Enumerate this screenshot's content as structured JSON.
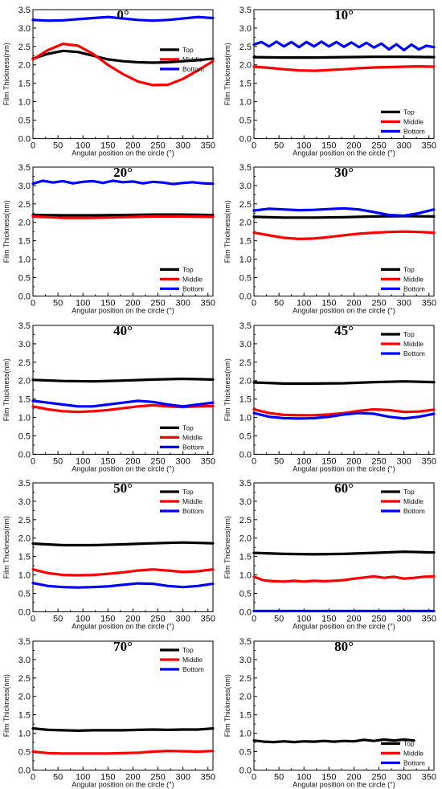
{
  "figure": {
    "xlabel": "Angular position on the circle (°)",
    "ylabel": "Film Thickness(nm)",
    "legend": [
      "Top",
      "Middle",
      "Bottom"
    ],
    "colors": {
      "Top": "#000000",
      "Middle": "#ff0000",
      "Bottom": "#0000ff"
    }
  },
  "chart_data": [
    {
      "type": "line",
      "title": "0°",
      "xlim": [
        0,
        360
      ],
      "ylim": [
        0,
        3.5
      ],
      "xticks": [
        0,
        50,
        100,
        150,
        200,
        250,
        300,
        350
      ],
      "yticks": [
        0.0,
        0.5,
        1.0,
        1.5,
        2.0,
        2.5,
        3.0,
        3.5
      ],
      "legend_position": "right-middle",
      "series": [
        {
          "name": "Top",
          "x": [
            0,
            30,
            60,
            90,
            120,
            150,
            180,
            210,
            240,
            270,
            300,
            330,
            360
          ],
          "y": [
            2.17,
            2.3,
            2.38,
            2.35,
            2.25,
            2.15,
            2.1,
            2.07,
            2.06,
            2.07,
            2.1,
            2.13,
            2.17
          ]
        },
        {
          "name": "Middle",
          "x": [
            0,
            30,
            60,
            90,
            120,
            150,
            180,
            210,
            240,
            270,
            300,
            330,
            360
          ],
          "y": [
            2.15,
            2.4,
            2.57,
            2.52,
            2.3,
            2.0,
            1.75,
            1.55,
            1.45,
            1.46,
            1.62,
            1.85,
            2.1
          ]
        },
        {
          "name": "Bottom",
          "x": [
            0,
            30,
            60,
            90,
            120,
            150,
            180,
            210,
            240,
            270,
            300,
            330,
            360
          ],
          "y": [
            3.22,
            3.2,
            3.21,
            3.24,
            3.27,
            3.3,
            3.26,
            3.22,
            3.2,
            3.22,
            3.26,
            3.3,
            3.27
          ]
        }
      ]
    },
    {
      "type": "line",
      "title": "10°",
      "xlim": [
        0,
        360
      ],
      "ylim": [
        0,
        3.5
      ],
      "xticks": [
        0,
        50,
        100,
        150,
        200,
        250,
        300,
        350
      ],
      "yticks": [
        0.0,
        0.5,
        1.0,
        1.5,
        2.0,
        2.5,
        3.0,
        3.5
      ],
      "legend_position": "bottom-right",
      "series": [
        {
          "name": "Top",
          "x": [
            0,
            60,
            120,
            180,
            240,
            300,
            360
          ],
          "y": [
            2.21,
            2.2,
            2.2,
            2.21,
            2.22,
            2.22,
            2.21
          ]
        },
        {
          "name": "Middle",
          "x": [
            0,
            30,
            60,
            90,
            120,
            150,
            180,
            210,
            240,
            270,
            300,
            330,
            360
          ],
          "y": [
            1.95,
            1.92,
            1.88,
            1.85,
            1.84,
            1.86,
            1.88,
            1.91,
            1.93,
            1.94,
            1.95,
            1.96,
            1.95
          ]
        },
        {
          "name": "Bottom",
          "x": [
            0,
            15,
            30,
            45,
            60,
            75,
            90,
            105,
            120,
            135,
            150,
            165,
            180,
            195,
            210,
            225,
            240,
            255,
            270,
            285,
            300,
            315,
            330,
            345,
            360
          ],
          "y": [
            2.55,
            2.62,
            2.5,
            2.63,
            2.5,
            2.62,
            2.48,
            2.62,
            2.5,
            2.63,
            2.5,
            2.62,
            2.49,
            2.61,
            2.48,
            2.6,
            2.47,
            2.58,
            2.42,
            2.56,
            2.4,
            2.55,
            2.42,
            2.52,
            2.48
          ]
        }
      ]
    },
    {
      "type": "line",
      "title": "20°",
      "xlim": [
        0,
        360
      ],
      "ylim": [
        0,
        3.5
      ],
      "xticks": [
        0,
        50,
        100,
        150,
        200,
        250,
        300,
        350
      ],
      "yticks": [
        0.0,
        0.5,
        1.0,
        1.5,
        2.0,
        2.5,
        3.0,
        3.5
      ],
      "legend_position": "bottom-right",
      "series": [
        {
          "name": "Top",
          "x": [
            0,
            60,
            120,
            180,
            240,
            300,
            360
          ],
          "y": [
            2.2,
            2.19,
            2.19,
            2.2,
            2.21,
            2.21,
            2.2
          ]
        },
        {
          "name": "Middle",
          "x": [
            0,
            60,
            120,
            180,
            240,
            300,
            360
          ],
          "y": [
            2.16,
            2.12,
            2.12,
            2.14,
            2.16,
            2.16,
            2.15
          ]
        },
        {
          "name": "Bottom",
          "x": [
            0,
            20,
            40,
            60,
            80,
            100,
            120,
            140,
            160,
            180,
            200,
            220,
            240,
            260,
            280,
            300,
            320,
            340,
            360
          ],
          "y": [
            3.05,
            3.13,
            3.08,
            3.12,
            3.06,
            3.1,
            3.12,
            3.07,
            3.13,
            3.09,
            3.11,
            3.06,
            3.1,
            3.08,
            3.04,
            3.07,
            3.09,
            3.06,
            3.05
          ]
        }
      ]
    },
    {
      "type": "line",
      "title": "30°",
      "xlim": [
        0,
        360
      ],
      "ylim": [
        0,
        3.5
      ],
      "xticks": [
        0,
        50,
        100,
        150,
        200,
        250,
        300,
        350
      ],
      "yticks": [
        0.0,
        0.5,
        1.0,
        1.5,
        2.0,
        2.5,
        3.0,
        3.5
      ],
      "legend_position": "bottom-right",
      "series": [
        {
          "name": "Top",
          "x": [
            0,
            60,
            120,
            180,
            240,
            300,
            360
          ],
          "y": [
            2.15,
            2.13,
            2.13,
            2.14,
            2.16,
            2.17,
            2.16
          ]
        },
        {
          "name": "Middle",
          "x": [
            0,
            30,
            60,
            90,
            120,
            150,
            180,
            210,
            240,
            270,
            300,
            330,
            360
          ],
          "y": [
            1.72,
            1.65,
            1.58,
            1.55,
            1.56,
            1.6,
            1.65,
            1.69,
            1.72,
            1.74,
            1.75,
            1.74,
            1.72
          ]
        },
        {
          "name": "Bottom",
          "x": [
            0,
            30,
            60,
            90,
            120,
            150,
            180,
            210,
            240,
            270,
            300,
            330,
            360
          ],
          "y": [
            2.32,
            2.37,
            2.35,
            2.33,
            2.34,
            2.36,
            2.38,
            2.35,
            2.28,
            2.2,
            2.18,
            2.25,
            2.35
          ]
        }
      ]
    },
    {
      "type": "line",
      "title": "40°",
      "xlim": [
        0,
        360
      ],
      "ylim": [
        0,
        3.5
      ],
      "xticks": [
        0,
        50,
        100,
        150,
        200,
        250,
        300,
        350
      ],
      "yticks": [
        0.0,
        0.5,
        1.0,
        1.5,
        2.0,
        2.5,
        3.0,
        3.5
      ],
      "legend_position": "bottom-right",
      "series": [
        {
          "name": "Top",
          "x": [
            0,
            60,
            120,
            180,
            240,
            300,
            360
          ],
          "y": [
            2.02,
            1.99,
            1.98,
            2.0,
            2.03,
            2.05,
            2.03
          ]
        },
        {
          "name": "Middle",
          "x": [
            0,
            30,
            60,
            90,
            120,
            150,
            180,
            210,
            240,
            270,
            300,
            330,
            360
          ],
          "y": [
            1.3,
            1.22,
            1.17,
            1.15,
            1.17,
            1.2,
            1.25,
            1.3,
            1.33,
            1.3,
            1.28,
            1.3,
            1.31
          ]
        },
        {
          "name": "Bottom",
          "x": [
            0,
            30,
            60,
            90,
            120,
            150,
            180,
            210,
            240,
            270,
            300,
            330,
            360
          ],
          "y": [
            1.45,
            1.4,
            1.35,
            1.3,
            1.3,
            1.35,
            1.4,
            1.45,
            1.42,
            1.35,
            1.3,
            1.35,
            1.4
          ]
        }
      ]
    },
    {
      "type": "line",
      "title": "45°",
      "xlim": [
        0,
        360
      ],
      "ylim": [
        0,
        3.5
      ],
      "xticks": [
        0,
        50,
        100,
        150,
        200,
        250,
        300,
        350
      ],
      "yticks": [
        0.0,
        0.5,
        1.0,
        1.5,
        2.0,
        2.5,
        3.0,
        3.5
      ],
      "legend_position": "top-right",
      "series": [
        {
          "name": "Top",
          "x": [
            0,
            60,
            120,
            180,
            240,
            300,
            360
          ],
          "y": [
            1.95,
            1.92,
            1.92,
            1.93,
            1.96,
            1.98,
            1.96
          ]
        },
        {
          "name": "Middle",
          "x": [
            0,
            30,
            60,
            90,
            120,
            150,
            180,
            210,
            240,
            270,
            300,
            330,
            360
          ],
          "y": [
            1.22,
            1.12,
            1.07,
            1.06,
            1.06,
            1.08,
            1.12,
            1.18,
            1.22,
            1.2,
            1.15,
            1.16,
            1.21
          ]
        },
        {
          "name": "Bottom",
          "x": [
            0,
            30,
            60,
            90,
            120,
            150,
            180,
            210,
            240,
            270,
            300,
            330,
            360
          ],
          "y": [
            1.12,
            1.02,
            0.98,
            0.97,
            0.98,
            1.02,
            1.08,
            1.12,
            1.1,
            1.02,
            0.97,
            1.02,
            1.1
          ]
        }
      ]
    },
    {
      "type": "line",
      "title": "50°",
      "xlim": [
        0,
        360
      ],
      "ylim": [
        0,
        3.5
      ],
      "xticks": [
        0,
        50,
        100,
        150,
        200,
        250,
        300,
        350
      ],
      "yticks": [
        0.0,
        0.5,
        1.0,
        1.5,
        2.0,
        2.5,
        3.0,
        3.5
      ],
      "legend_position": "top-right",
      "series": [
        {
          "name": "Top",
          "x": [
            0,
            60,
            120,
            180,
            240,
            300,
            360
          ],
          "y": [
            1.85,
            1.81,
            1.81,
            1.83,
            1.86,
            1.88,
            1.86
          ]
        },
        {
          "name": "Middle",
          "x": [
            0,
            30,
            60,
            90,
            120,
            150,
            180,
            210,
            240,
            270,
            300,
            330,
            360
          ],
          "y": [
            1.15,
            1.05,
            1.0,
            0.99,
            1.0,
            1.03,
            1.07,
            1.12,
            1.15,
            1.12,
            1.08,
            1.1,
            1.15
          ]
        },
        {
          "name": "Bottom",
          "x": [
            0,
            30,
            60,
            90,
            120,
            150,
            180,
            210,
            240,
            270,
            300,
            330,
            360
          ],
          "y": [
            0.78,
            0.7,
            0.67,
            0.66,
            0.67,
            0.69,
            0.73,
            0.77,
            0.76,
            0.7,
            0.67,
            0.7,
            0.76
          ]
        }
      ]
    },
    {
      "type": "line",
      "title": "60°",
      "xlim": [
        0,
        360
      ],
      "ylim": [
        0,
        3.5
      ],
      "xticks": [
        0,
        50,
        100,
        150,
        200,
        250,
        300,
        350
      ],
      "yticks": [
        0.0,
        0.5,
        1.0,
        1.5,
        2.0,
        2.5,
        3.0,
        3.5
      ],
      "legend_position": "top-right",
      "series": [
        {
          "name": "Top",
          "x": [
            0,
            60,
            120,
            180,
            240,
            300,
            360
          ],
          "y": [
            1.6,
            1.57,
            1.56,
            1.57,
            1.6,
            1.63,
            1.61
          ]
        },
        {
          "name": "Middle",
          "x": [
            0,
            20,
            40,
            60,
            80,
            100,
            120,
            140,
            160,
            180,
            200,
            220,
            240,
            260,
            280,
            300,
            320,
            340,
            360
          ],
          "y": [
            0.95,
            0.85,
            0.83,
            0.82,
            0.84,
            0.82,
            0.84,
            0.83,
            0.84,
            0.86,
            0.9,
            0.93,
            0.96,
            0.92,
            0.95,
            0.9,
            0.92,
            0.95,
            0.96
          ]
        },
        {
          "name": "Bottom",
          "x": [
            0,
            60,
            120,
            180,
            240,
            300,
            360
          ],
          "y": [
            0.02,
            0.02,
            0.02,
            0.02,
            0.02,
            0.02,
            0.02
          ]
        }
      ]
    },
    {
      "type": "line",
      "title": "70°",
      "xlim": [
        0,
        360
      ],
      "ylim": [
        0,
        3.5
      ],
      "xticks": [
        0,
        50,
        100,
        150,
        200,
        250,
        300,
        350
      ],
      "yticks": [
        0.0,
        0.5,
        1.0,
        1.5,
        2.0,
        2.5,
        3.0,
        3.5
      ],
      "legend_position": "top-right",
      "series": [
        {
          "name": "Top",
          "x": [
            0,
            30,
            60,
            90,
            120,
            150,
            180,
            210,
            240,
            270,
            300,
            330,
            360
          ],
          "y": [
            1.13,
            1.09,
            1.08,
            1.07,
            1.08,
            1.08,
            1.08,
            1.09,
            1.1,
            1.09,
            1.1,
            1.1,
            1.13
          ]
        },
        {
          "name": "Middle",
          "x": [
            0,
            30,
            60,
            90,
            120,
            150,
            180,
            210,
            240,
            270,
            300,
            330,
            360
          ],
          "y": [
            0.5,
            0.46,
            0.45,
            0.45,
            0.45,
            0.45,
            0.46,
            0.47,
            0.5,
            0.52,
            0.51,
            0.5,
            0.52
          ]
        }
      ]
    },
    {
      "type": "line",
      "title": "80°",
      "xlim": [
        0,
        360
      ],
      "ylim": [
        0,
        3.5
      ],
      "xticks": [
        0,
        50,
        100,
        150,
        200,
        250,
        300,
        350
      ],
      "yticks": [
        0.0,
        0.5,
        1.0,
        1.5,
        2.0,
        2.5,
        3.0,
        3.5
      ],
      "legend_position": "bottom-right",
      "series": [
        {
          "name": "Top",
          "x": [
            0,
            20,
            40,
            60,
            80,
            100,
            120,
            140,
            160,
            180,
            200,
            220,
            240,
            260,
            280,
            300,
            320
          ],
          "y": [
            0.8,
            0.77,
            0.76,
            0.78,
            0.76,
            0.78,
            0.77,
            0.79,
            0.77,
            0.79,
            0.78,
            0.82,
            0.79,
            0.83,
            0.8,
            0.83,
            0.8
          ]
        }
      ]
    }
  ]
}
